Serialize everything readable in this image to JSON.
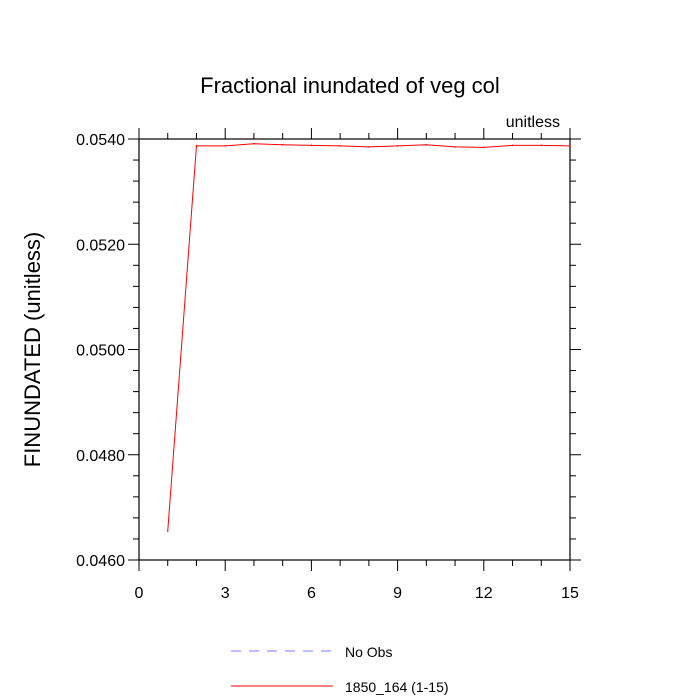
{
  "chart_data": {
    "type": "line",
    "title": "Fractional inundated of veg col",
    "units_label": "unitless",
    "ylabel": "FINUNDATED  (unitless)",
    "xlabel": "",
    "xlim": [
      0,
      15
    ],
    "ylim": [
      0.046,
      0.054
    ],
    "x_ticks": [
      0,
      3,
      6,
      9,
      12,
      15
    ],
    "x_tick_labels": [
      "0",
      "3",
      "6",
      "9",
      "12",
      "15"
    ],
    "y_ticks": [
      0.046,
      0.048,
      0.05,
      0.052,
      0.054
    ],
    "y_tick_labels": [
      "0.0460",
      "0.0480",
      "0.0500",
      "0.0520",
      "0.0540"
    ],
    "grid": false,
    "legend_position": "bottom",
    "series": [
      {
        "name": "No Obs",
        "color": "#7b7bff",
        "dash": true,
        "x": [],
        "values": []
      },
      {
        "name": "1850_164 (1-15)",
        "color": "#ff0000",
        "dash": false,
        "x": [
          1,
          2,
          3,
          4,
          5,
          6,
          7,
          8,
          9,
          10,
          11,
          12,
          13,
          14,
          15
        ],
        "values": [
          0.04655,
          0.05387,
          0.05387,
          0.05391,
          0.05389,
          0.05388,
          0.05387,
          0.05385,
          0.05387,
          0.05389,
          0.05385,
          0.05384,
          0.05388,
          0.05388,
          0.05387
        ]
      }
    ]
  }
}
